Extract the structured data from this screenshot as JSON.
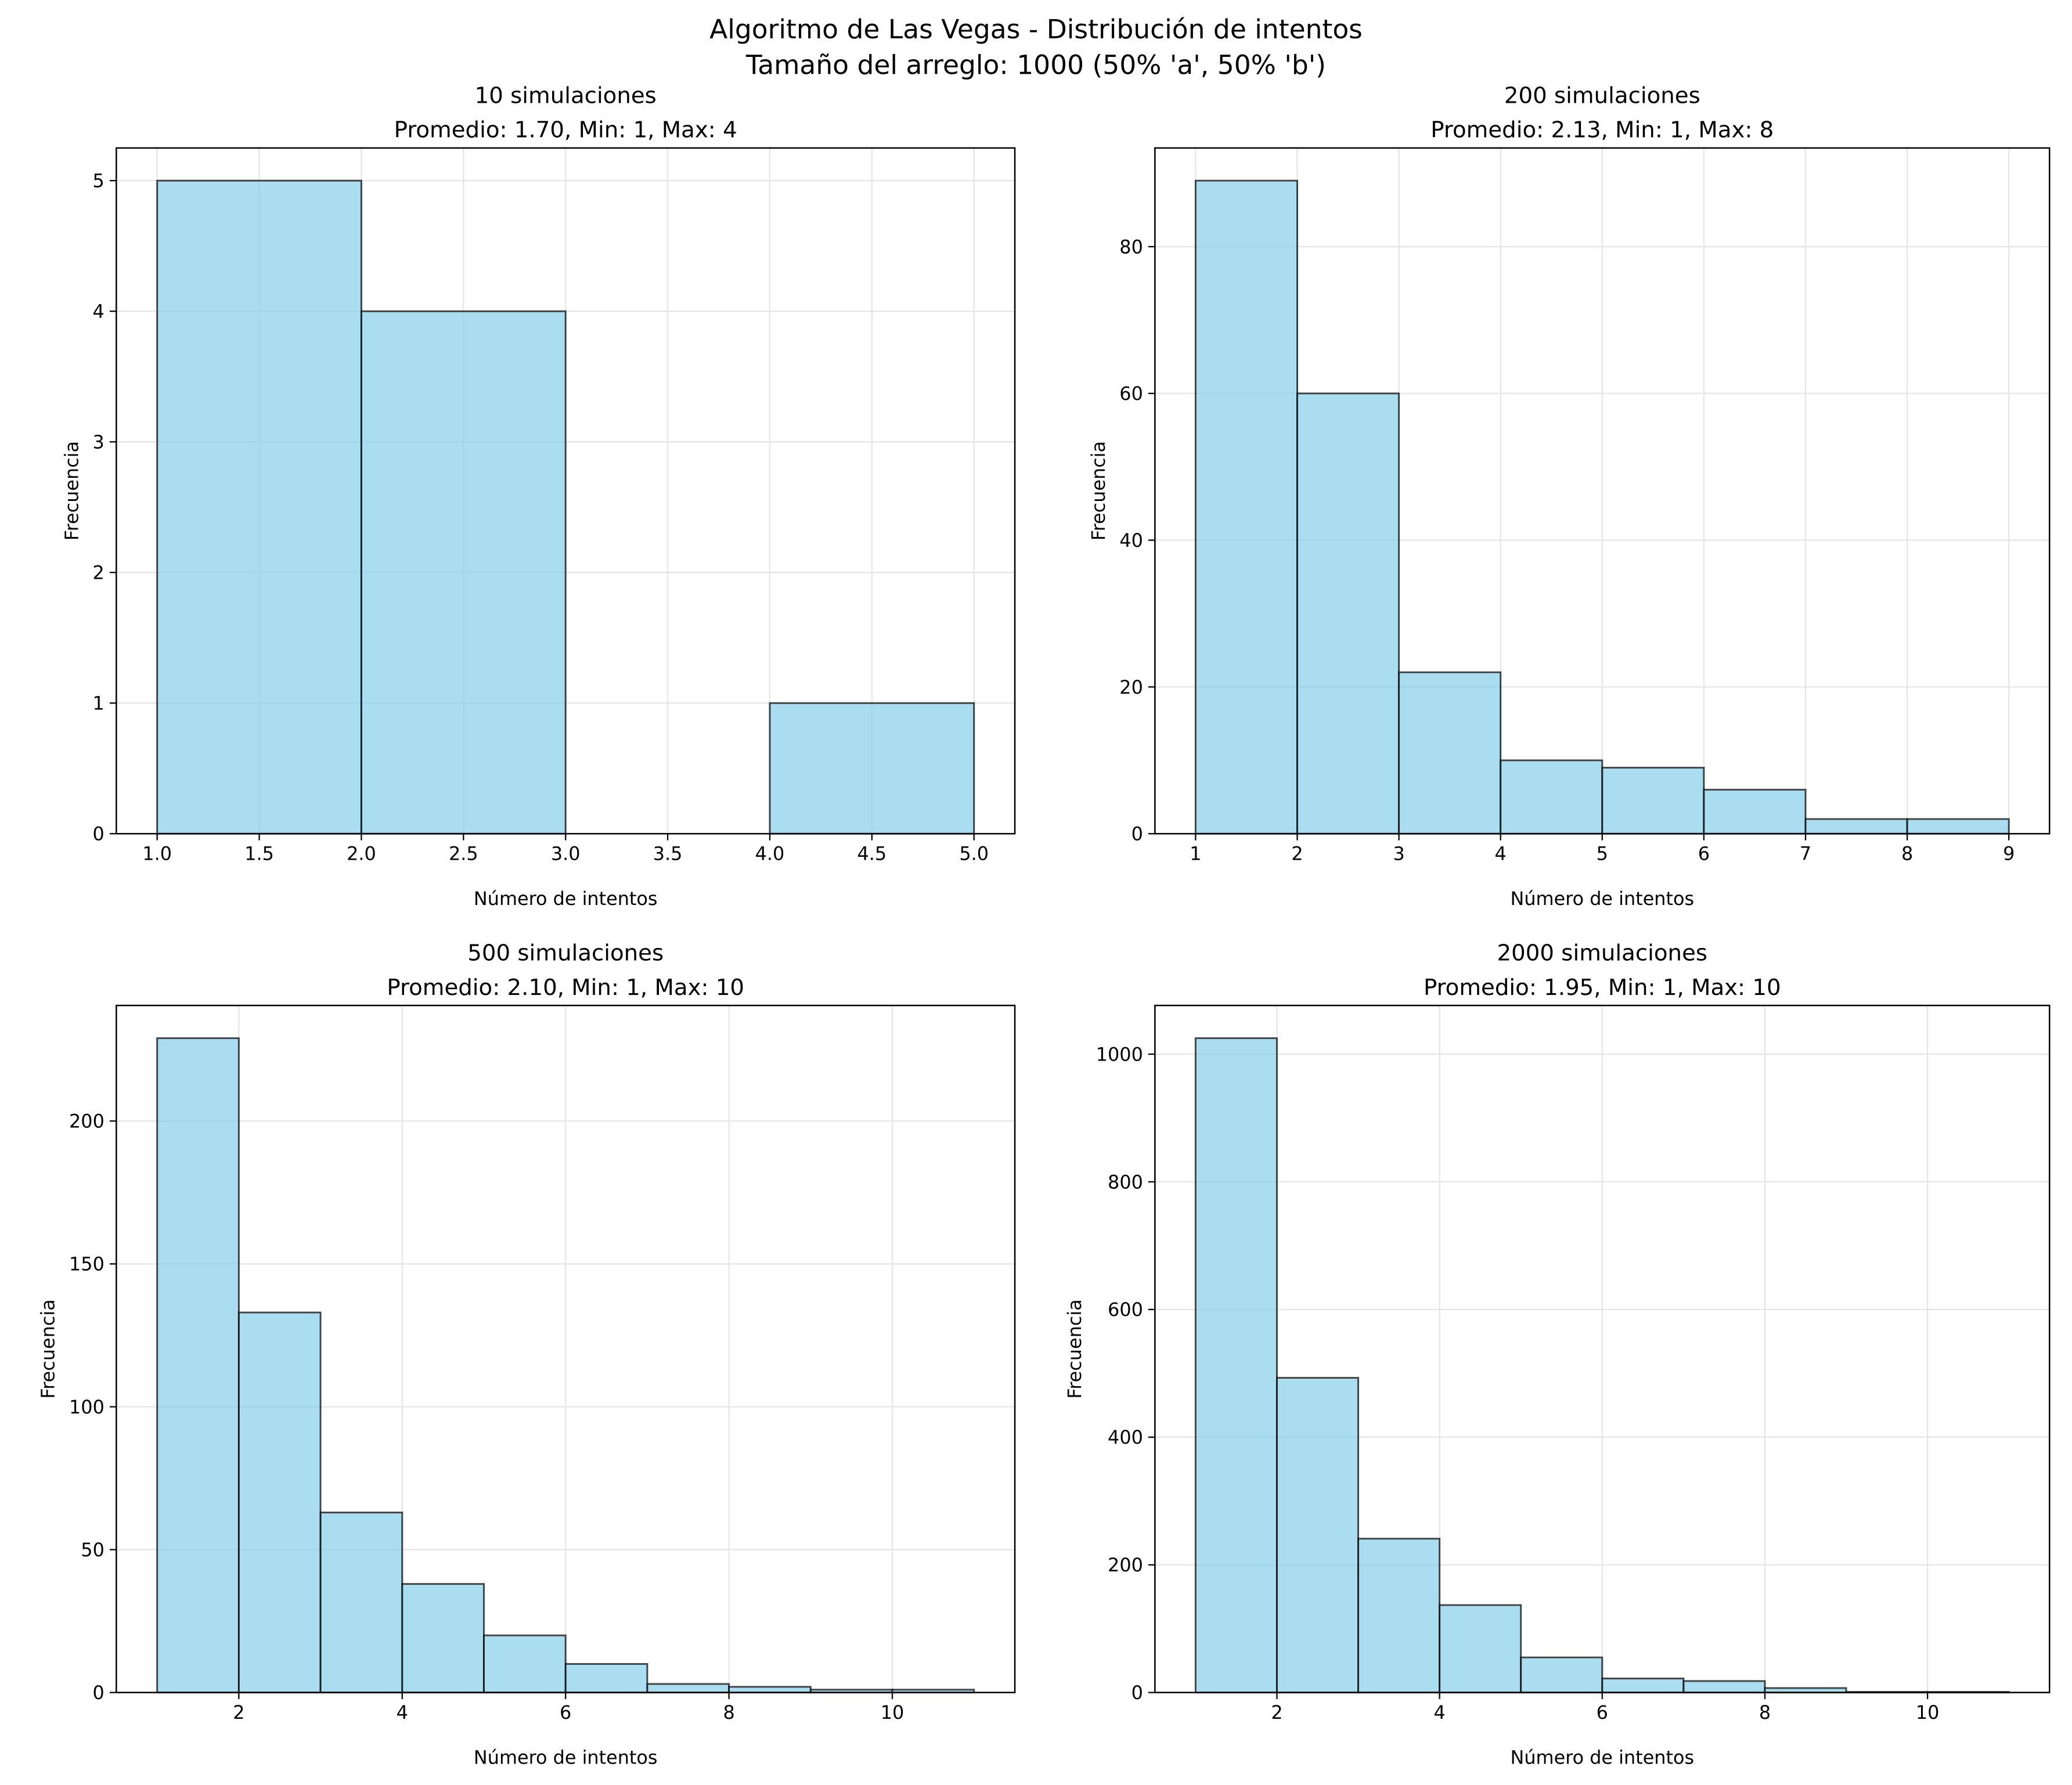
{
  "suptitle": [
    "Algoritmo de Las Vegas - Distribución de intentos",
    "Tamaño del arreglo: 1000 (50% 'a', 50% 'b')"
  ],
  "colors": {
    "bar_fill": "#87CEEB",
    "bar_alpha": 0.7,
    "bar_edge": "#000000",
    "grid": "#e5e5e5"
  },
  "chart_data": [
    {
      "type": "bar",
      "title": [
        "10 simulaciones",
        "Promedio: 1.70, Min: 1, Max: 4"
      ],
      "xlabel": "Número de intentos",
      "ylabel": "Frecuencia",
      "bin_edges": [
        1,
        2,
        3,
        4,
        5
      ],
      "values": [
        5,
        4,
        0,
        1
      ],
      "xlim": [
        0.8,
        5.2
      ],
      "ylim": [
        0,
        5.25
      ],
      "xticks": [
        1.0,
        1.5,
        2.0,
        2.5,
        3.0,
        3.5,
        4.0,
        4.5,
        5.0
      ],
      "xtick_labels": [
        "1.0",
        "1.5",
        "2.0",
        "2.5",
        "3.0",
        "3.5",
        "4.0",
        "4.5",
        "5.0"
      ],
      "yticks": [
        0,
        1,
        2,
        3,
        4,
        5
      ],
      "ytick_labels": [
        "0",
        "1",
        "2",
        "3",
        "4",
        "5"
      ],
      "grid": true
    },
    {
      "type": "bar",
      "title": [
        "200 simulaciones",
        "Promedio: 2.13, Min: 1, Max: 8"
      ],
      "xlabel": "Número de intentos",
      "ylabel": "Frecuencia",
      "bin_edges": [
        1,
        2,
        3,
        4,
        5,
        6,
        7,
        8,
        9
      ],
      "values": [
        89,
        60,
        22,
        10,
        9,
        6,
        2,
        2
      ],
      "xlim": [
        0.6,
        9.4
      ],
      "ylim": [
        0,
        93.45
      ],
      "xticks": [
        1,
        2,
        3,
        4,
        5,
        6,
        7,
        8,
        9
      ],
      "xtick_labels": [
        "1",
        "2",
        "3",
        "4",
        "5",
        "6",
        "7",
        "8",
        "9"
      ],
      "yticks": [
        0,
        20,
        40,
        60,
        80
      ],
      "ytick_labels": [
        "0",
        "20",
        "40",
        "60",
        "80"
      ],
      "grid": true
    },
    {
      "type": "bar",
      "title": [
        "500 simulaciones",
        "Promedio: 2.10, Min: 1, Max: 10"
      ],
      "xlabel": "Número de intentos",
      "ylabel": "Frecuencia",
      "bin_edges": [
        1,
        2,
        3,
        4,
        5,
        6,
        7,
        8,
        9,
        10,
        11
      ],
      "values": [
        229,
        133,
        63,
        38,
        20,
        10,
        3,
        2,
        1,
        1
      ],
      "xlim": [
        0.5,
        11.5
      ],
      "ylim": [
        0,
        240.45
      ],
      "xticks": [
        2,
        4,
        6,
        8,
        10
      ],
      "xtick_labels": [
        "2",
        "4",
        "6",
        "8",
        "10"
      ],
      "yticks": [
        0,
        50,
        100,
        150,
        200
      ],
      "ytick_labels": [
        "0",
        "50",
        "100",
        "150",
        "200"
      ],
      "grid": true
    },
    {
      "type": "bar",
      "title": [
        "2000 simulaciones",
        "Promedio: 1.95, Min: 1, Max: 10"
      ],
      "xlabel": "Número de intentos",
      "ylabel": "Frecuencia",
      "bin_edges": [
        1,
        2,
        3,
        4,
        5,
        6,
        7,
        8,
        9,
        10,
        11
      ],
      "values": [
        1025,
        493,
        241,
        137,
        55,
        22,
        18,
        7,
        1,
        1
      ],
      "xlim": [
        0.5,
        11.5
      ],
      "ylim": [
        0,
        1076.25
      ],
      "xticks": [
        2,
        4,
        6,
        8,
        10
      ],
      "xtick_labels": [
        "2",
        "4",
        "6",
        "8",
        "10"
      ],
      "yticks": [
        0,
        200,
        400,
        600,
        800,
        1000
      ],
      "ytick_labels": [
        "0",
        "200",
        "400",
        "600",
        "800",
        "1000"
      ],
      "grid": true
    }
  ]
}
